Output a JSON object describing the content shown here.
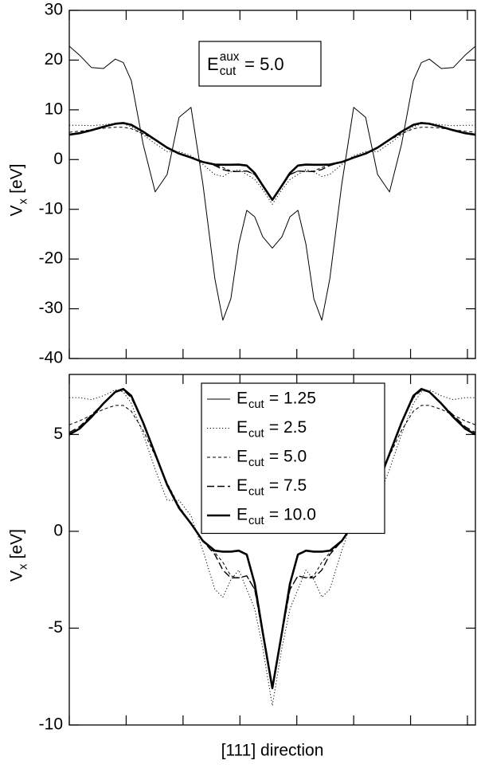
{
  "chart_data": [
    {
      "type": "line",
      "ylabel": {
        "base": "V",
        "sub": "x",
        "rest": "[eV]"
      },
      "annotation": {
        "base": "E",
        "sup": "aux",
        "sub": "cut",
        "rest": "= 5.0"
      },
      "x": [
        0,
        0.18,
        0.39,
        0.6,
        0.81,
        0.95,
        1.09,
        1.3,
        1.51,
        1.72,
        1.93,
        2.14,
        2.35,
        2.56,
        2.7,
        2.84,
        2.98,
        3.12,
        3.26,
        3.4,
        3.57,
        3.74,
        3.88,
        4.02,
        4.16,
        4.3,
        4.44,
        4.58,
        4.79,
        5.0,
        5.21,
        5.42,
        5.63,
        5.84,
        6.05,
        6.19,
        6.33,
        6.54,
        6.75,
        6.96,
        7.14
      ],
      "xlim": [
        0,
        7.14
      ],
      "xticks": [
        0,
        1,
        2,
        3,
        4,
        5,
        6,
        7
      ],
      "ylim": [
        -40,
        30
      ],
      "yticks": [
        30,
        20,
        10,
        0,
        -10,
        -20,
        -30,
        -40
      ],
      "series": [
        {
          "name": {
            "base": "E",
            "sub": "cut",
            "rest": "= 1.25"
          },
          "color": "#000000",
          "style": "solid",
          "width": 1,
          "values": [
            22.8,
            21,
            18.5,
            18.3,
            20.2,
            19.5,
            15.9,
            3,
            -6.5,
            -3,
            8.5,
            10.5,
            -5,
            -24,
            -32.3,
            -28,
            -17,
            -10.2,
            -11.5,
            -15.5,
            -17.8,
            -15.5,
            -11.5,
            -10.2,
            -17,
            -28,
            -32.3,
            -24,
            -5,
            10.5,
            8.5,
            -3,
            -6.5,
            3,
            15.9,
            19.5,
            20.2,
            18.3,
            18.5,
            21,
            22.8
          ]
        },
        {
          "name": {
            "base": "E",
            "sub": "cut",
            "rest": "= 2.5"
          },
          "color": "#000000",
          "style": "dotted",
          "width": 1,
          "values": [
            6.9,
            6.9,
            6.8,
            7.0,
            7.3,
            7.2,
            6.6,
            5.0,
            3.2,
            1.6,
            1.6,
            0.8,
            -1.0,
            -3.0,
            -3.4,
            -2.5,
            -2.0,
            -3.0,
            -4.0,
            -6.0,
            -9.0,
            -6.0,
            -4.0,
            -3.0,
            -2.0,
            -2.5,
            -3.4,
            -3.0,
            -1.0,
            0.8,
            1.6,
            1.6,
            3.2,
            5.0,
            6.6,
            7.2,
            7.3,
            7.0,
            6.8,
            6.9,
            6.9
          ]
        },
        {
          "name": {
            "base": "E",
            "sub": "cut",
            "rest": "= 5.0"
          },
          "color": "#000000",
          "style": "dashed",
          "width": 1,
          "values": [
            5.5,
            5.7,
            6.0,
            6.3,
            6.5,
            6.5,
            6.2,
            5.2,
            3.9,
            2.5,
            1.3,
            0.4,
            -0.5,
            -1.1,
            -1.6,
            -2.3,
            -2.4,
            -2.3,
            -3.0,
            -5.2,
            -8.0,
            -5.2,
            -3.0,
            -2.3,
            -2.4,
            -2.3,
            -1.6,
            -1.1,
            -0.5,
            0.4,
            1.3,
            2.5,
            3.9,
            5.2,
            6.2,
            6.5,
            6.5,
            6.3,
            6.0,
            5.7,
            5.5
          ]
        },
        {
          "name": {
            "base": "E",
            "sub": "cut",
            "rest": "= 7.5"
          },
          "color": "#000000",
          "style": "longdash",
          "width": 1.4,
          "values": [
            5.1,
            5.4,
            6.0,
            6.6,
            7.2,
            7.3,
            6.9,
            5.6,
            4.0,
            2.4,
            1.2,
            0.4,
            -0.5,
            -1.2,
            -2.0,
            -2.4,
            -2.4,
            -2.3,
            -3.0,
            -5.3,
            -8.1,
            -5.3,
            -3.0,
            -2.3,
            -2.4,
            -2.4,
            -2.0,
            -1.2,
            -0.5,
            0.4,
            1.2,
            2.4,
            4.0,
            5.6,
            6.9,
            7.3,
            7.2,
            6.6,
            6.0,
            5.4,
            5.1
          ]
        },
        {
          "name": {
            "base": "E",
            "sub": "cut",
            "rest": "= 10.0"
          },
          "color": "#000000",
          "style": "solid",
          "width": 2.6,
          "values": [
            5.0,
            5.3,
            5.9,
            6.6,
            7.2,
            7.35,
            7.0,
            5.6,
            4.0,
            2.4,
            1.2,
            0.4,
            -0.5,
            -1.0,
            -1.05,
            -1.05,
            -1.0,
            -1.2,
            -2.7,
            -5.2,
            -8.1,
            -5.2,
            -2.7,
            -1.2,
            -1.0,
            -1.05,
            -1.05,
            -1.0,
            -0.5,
            0.4,
            1.2,
            2.4,
            4.0,
            5.6,
            7.0,
            7.35,
            7.2,
            6.6,
            5.9,
            5.3,
            5.0
          ]
        }
      ]
    },
    {
      "type": "line",
      "ylabel": {
        "base": "V",
        "sub": "x",
        "rest": "[eV]"
      },
      "xlabel": "[111] direction",
      "legend": "upper center",
      "x": [
        0,
        0.18,
        0.39,
        0.6,
        0.81,
        0.95,
        1.09,
        1.3,
        1.51,
        1.72,
        1.93,
        2.14,
        2.35,
        2.56,
        2.7,
        2.84,
        2.98,
        3.12,
        3.26,
        3.4,
        3.57,
        3.74,
        3.88,
        4.02,
        4.16,
        4.3,
        4.44,
        4.58,
        4.79,
        5.0,
        5.21,
        5.42,
        5.63,
        5.84,
        6.05,
        6.19,
        6.33,
        6.54,
        6.75,
        6.96,
        7.14
      ],
      "xlim": [
        0,
        7.14
      ],
      "xticks": [
        0,
        1,
        2,
        3,
        4,
        5,
        6,
        7
      ],
      "ylim": [
        -10,
        8.1
      ],
      "yticks": [
        5,
        0,
        -5,
        -10
      ],
      "series": [
        {
          "name": {
            "base": "E",
            "sub": "cut",
            "rest": "= 1.25"
          },
          "color": "#000000",
          "style": "solid",
          "width": 1,
          "values": [
            null,
            null,
            null,
            null,
            null,
            null,
            null,
            null,
            null,
            null,
            null,
            null,
            null,
            null,
            null,
            null,
            null,
            null,
            null,
            null,
            null,
            null,
            null,
            null,
            null,
            null,
            null,
            null,
            null,
            null,
            null,
            null,
            null,
            null,
            null,
            null,
            null,
            null,
            null,
            null,
            null
          ]
        },
        {
          "name": {
            "base": "E",
            "sub": "cut",
            "rest": "= 2.5"
          },
          "color": "#000000",
          "style": "dotted",
          "width": 1,
          "values": [
            6.9,
            6.9,
            6.8,
            7.0,
            7.3,
            7.2,
            6.6,
            5.0,
            3.2,
            1.6,
            1.6,
            0.8,
            -1.0,
            -3.0,
            -3.4,
            -2.5,
            -2.0,
            -3.0,
            -4.0,
            -6.0,
            -9.0,
            -6.0,
            -4.0,
            -3.0,
            -2.0,
            -2.5,
            -3.4,
            -3.0,
            -1.0,
            0.8,
            1.6,
            1.6,
            3.2,
            5.0,
            6.6,
            7.2,
            7.3,
            7.0,
            6.8,
            6.9,
            6.9
          ]
        },
        {
          "name": {
            "base": "E",
            "sub": "cut",
            "rest": "= 5.0"
          },
          "color": "#000000",
          "style": "dashed",
          "width": 1,
          "values": [
            5.5,
            5.7,
            6.0,
            6.3,
            6.5,
            6.5,
            6.2,
            5.2,
            3.9,
            2.5,
            1.3,
            0.4,
            -0.5,
            -1.1,
            -1.6,
            -2.3,
            -2.4,
            -2.3,
            -3.0,
            -5.2,
            -8.0,
            -5.2,
            -3.0,
            -2.3,
            -2.4,
            -2.3,
            -1.6,
            -1.1,
            -0.5,
            0.4,
            1.3,
            2.5,
            3.9,
            5.2,
            6.2,
            6.5,
            6.5,
            6.3,
            6.0,
            5.7,
            5.5
          ]
        },
        {
          "name": {
            "base": "E",
            "sub": "cut",
            "rest": "= 7.5"
          },
          "color": "#000000",
          "style": "longdash",
          "width": 1.4,
          "values": [
            5.1,
            5.4,
            6.0,
            6.6,
            7.2,
            7.3,
            6.9,
            5.6,
            4.0,
            2.4,
            1.2,
            0.4,
            -0.5,
            -1.2,
            -2.0,
            -2.4,
            -2.4,
            -2.3,
            -3.0,
            -5.3,
            -8.1,
            -5.3,
            -3.0,
            -2.3,
            -2.4,
            -2.4,
            -2.0,
            -1.2,
            -0.5,
            0.4,
            1.2,
            2.4,
            4.0,
            5.6,
            6.9,
            7.3,
            7.2,
            6.6,
            6.0,
            5.4,
            5.1
          ]
        },
        {
          "name": {
            "base": "E",
            "sub": "cut",
            "rest": "= 10.0"
          },
          "color": "#000000",
          "style": "solid",
          "width": 2.6,
          "values": [
            5.0,
            5.3,
            5.9,
            6.6,
            7.2,
            7.35,
            7.0,
            5.6,
            4.0,
            2.4,
            1.2,
            0.4,
            -0.5,
            -1.0,
            -1.05,
            -1.05,
            -1.0,
            -1.2,
            -2.7,
            -5.2,
            -8.1,
            -5.2,
            -2.7,
            -1.2,
            -1.0,
            -1.05,
            -1.05,
            -1.0,
            -0.5,
            0.4,
            1.2,
            2.4,
            4.0,
            5.6,
            7.0,
            7.35,
            7.2,
            6.6,
            5.9,
            5.3,
            5.0
          ]
        }
      ]
    }
  ]
}
